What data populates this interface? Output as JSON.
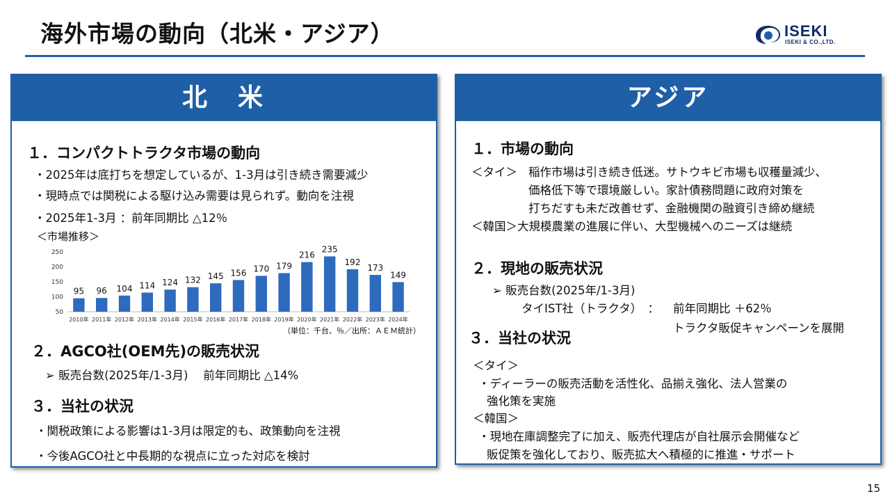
{
  "page": {
    "title": "海外市場の動向（北米・アジア）",
    "page_number": "15",
    "accent_color": "#1f5fa8"
  },
  "logo": {
    "name": "ISEKI",
    "sub": "ISEKI & CO.,LTD."
  },
  "north_america": {
    "header": "北　米",
    "s1": {
      "heading": "１．コンパクトトラクタ市場の動向",
      "bullets": [
        "・2025年は底打ちを想定しているが、1-3月は引き続き需要減少",
        "・現時点では関税による駆け込み需要は見られず。動向を注視",
        "・2025年1-3月 ：前年同期比 △12％"
      ],
      "chart_label": "＜市場推移＞",
      "chart_source": "（単位：千台、％／出所：ＡＥＭ統計）"
    },
    "s2": {
      "heading": "２．AGCO社(OEM先)の販売状況",
      "line": "➢ 販売台数(2025年/1-3月)　 前年同期比 △14%"
    },
    "s3": {
      "heading": "３．当社の状況",
      "bullets": [
        "・関税政策による影響は1-3月は限定的も、政策動向を注視",
        "・今後AGCO社と中長期的な視点に立った対応を検討"
      ]
    }
  },
  "asia": {
    "header": "アジア",
    "s1": {
      "heading": "１．市場の動向",
      "thai_tag": "＜タイ＞",
      "thai_lines": [
        "稲作市場は引き続き低迷。サトウキビ市場も収穫量減少、",
        "価格低下等で環境厳しい。家計債務問題に政府対策を",
        "打ちだすも未だ改善せず、金融機関の融資引き締め継続"
      ],
      "korea_line": "＜韓国＞大規模農業の進展に伴い、大型機械へのニーズは継続"
    },
    "s2": {
      "heading": "２．現地の販売状況",
      "sales_line": "➢ 販売台数(2025年/1-3月)",
      "thai_ist": "タイIST社（トラクタ）　：",
      "yoy": "前年同期比 ＋62％",
      "campaign": "トラクタ販促キャンペーンを展開"
    },
    "s3": {
      "heading": "３．当社の状況",
      "thai_tag": "＜タイ＞",
      "thai_lines": [
        "・ディーラーの販売活動を活性化、品揃え強化、法人営業の",
        "強化策を実施"
      ],
      "korea_tag": "＜韓国＞",
      "korea_lines": [
        "・現地在庫調整完了に加え、販売代理店が自社展示会開催など",
        "販促策を強化しており、販売拡大へ積極的に推進・サポート"
      ]
    }
  },
  "chart_data": {
    "type": "bar",
    "categories": [
      "2010年",
      "2011年",
      "2012年",
      "2013年",
      "2014年",
      "2015年",
      "2016年",
      "2017年",
      "2018年",
      "2019年",
      "2020年",
      "2021年",
      "2022年",
      "2023年",
      "2024年"
    ],
    "values": [
      95,
      96,
      104,
      114,
      124,
      132,
      145,
      156,
      170,
      179,
      216,
      235,
      192,
      173,
      149
    ],
    "yticks": [
      "250",
      "200",
      "150",
      "100",
      "50"
    ],
    "ylim": [
      50,
      250
    ],
    "bar_color": "#2e6bbf",
    "grid": false
  }
}
